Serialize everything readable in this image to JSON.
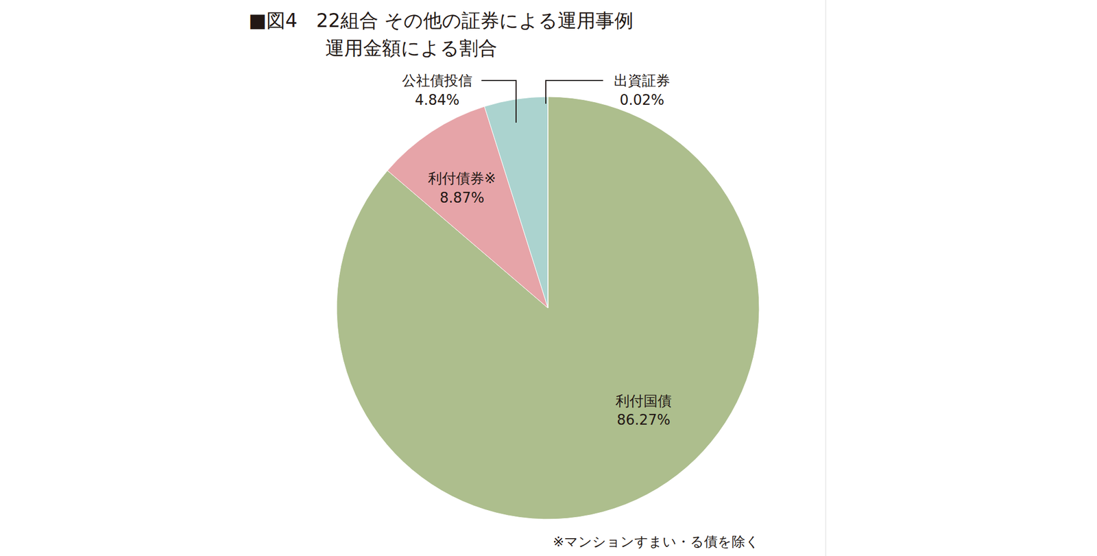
{
  "chart_data": {
    "type": "pie",
    "title": "■図4　22組合 その他の証券による運用事例",
    "subtitle": "運用金額による割合",
    "categories": [
      "利付国債",
      "利付債券※",
      "公社債投信",
      "出資証券"
    ],
    "values": [
      86.27,
      8.87,
      4.84,
      0.02
    ],
    "value_labels": [
      "86.27%",
      "8.87%",
      "4.84%",
      "0.02%"
    ],
    "colors": [
      "#adbe8d",
      "#e6a4a8",
      "#abd3cf",
      "#e8894a"
    ],
    "data_labels": true,
    "annotations": [
      "※マンションすまい・る債を除く"
    ]
  }
}
